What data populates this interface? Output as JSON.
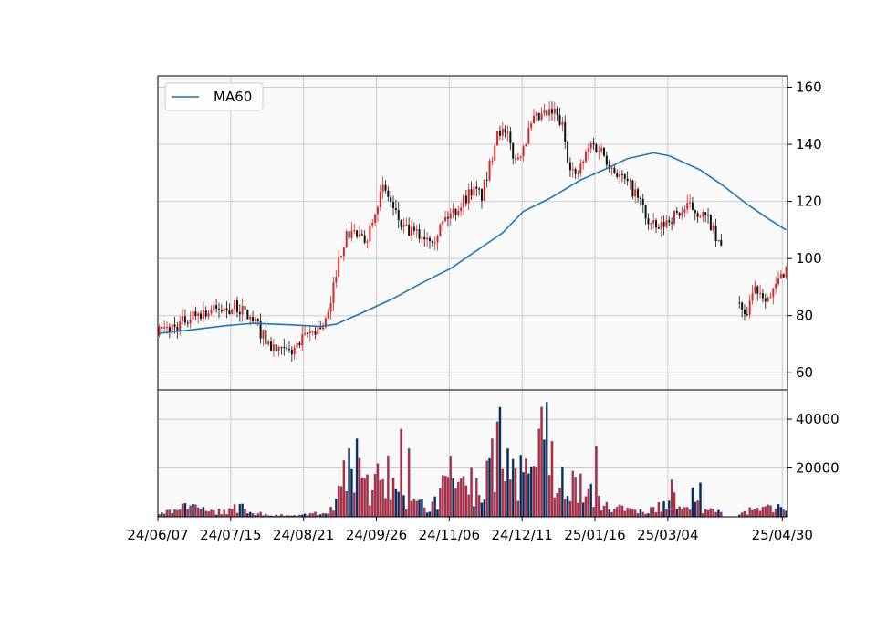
{
  "chart_data": {
    "type": "candlestick",
    "subtype": "candlestick-with-volume",
    "grid": true,
    "legend": {
      "placement": "top-left",
      "entries": [
        {
          "name": "MA60",
          "color": "#1f77b4"
        }
      ]
    },
    "colors": {
      "up": "#d62728",
      "down": "#111111",
      "volume_up": "#c1272d",
      "volume_down": "#0c2a4a",
      "ma_line": "#1f77b4",
      "panel_bg": "#f9f9f9",
      "grid": "#cccccc"
    },
    "price_panel": {
      "ylim": [
        54,
        164
      ],
      "yticks": [
        60,
        80,
        100,
        120,
        140,
        160
      ],
      "ytick_labels": [
        "60",
        "80",
        "100",
        "120",
        "140",
        "160"
      ],
      "ylabel_side": "right",
      "trend_anchors": [
        [
          0,
          74
        ],
        [
          8,
          77
        ],
        [
          14,
          81
        ],
        [
          24,
          82
        ],
        [
          30,
          83
        ],
        [
          34,
          80
        ],
        [
          38,
          76
        ],
        [
          42,
          70
        ],
        [
          46,
          67
        ],
        [
          50,
          67
        ],
        [
          54,
          70
        ],
        [
          58,
          74
        ],
        [
          62,
          76
        ],
        [
          64,
          78
        ],
        [
          66,
          83
        ],
        [
          68,
          96
        ],
        [
          71,
          106
        ],
        [
          74,
          110
        ],
        [
          78,
          106
        ],
        [
          80,
          108
        ],
        [
          83,
          118
        ],
        [
          86,
          124
        ],
        [
          88,
          122
        ],
        [
          90,
          117
        ],
        [
          94,
          110
        ],
        [
          100,
          108
        ],
        [
          106,
          108
        ],
        [
          110,
          114
        ],
        [
          115,
          118
        ],
        [
          120,
          124
        ],
        [
          124,
          122
        ],
        [
          127,
          132
        ],
        [
          130,
          146
        ],
        [
          134,
          142
        ],
        [
          137,
          134
        ],
        [
          140,
          140
        ],
        [
          144,
          148
        ],
        [
          148,
          150
        ],
        [
          152,
          151
        ],
        [
          155,
          146
        ],
        [
          157,
          136
        ],
        [
          160,
          128
        ],
        [
          163,
          134
        ],
        [
          166,
          140
        ],
        [
          170,
          138
        ],
        [
          174,
          132
        ],
        [
          178,
          128
        ],
        [
          182,
          124
        ],
        [
          186,
          118
        ],
        [
          188,
          112
        ],
        [
          192,
          110
        ],
        [
          196,
          114
        ],
        [
          200,
          116
        ],
        [
          204,
          118
        ],
        [
          208,
          116
        ],
        [
          212,
          112
        ],
        [
          214,
          106
        ],
        [
          216,
          104
        ]
      ],
      "trend_gaps": [
        [
          217,
          222
        ]
      ],
      "trend_anchors_after_gap": [
        [
          223,
          85
        ],
        [
          225,
          78
        ],
        [
          227,
          86
        ],
        [
          229,
          90
        ],
        [
          232,
          88
        ],
        [
          235,
          86
        ],
        [
          238,
          92
        ],
        [
          241,
          97
        ]
      ]
    },
    "volume_panel": {
      "ylim": [
        0,
        52000
      ],
      "yticks": [
        20000,
        40000
      ],
      "ytick_labels": [
        "20000",
        "40000"
      ],
      "volume_anchors": [
        [
          0,
          1500
        ],
        [
          5,
          3000
        ],
        [
          10,
          4500
        ],
        [
          20,
          2500
        ],
        [
          28,
          3500
        ],
        [
          32,
          5000
        ],
        [
          36,
          2000
        ],
        [
          45,
          800
        ],
        [
          55,
          800
        ],
        [
          60,
          1500
        ],
        [
          66,
          3000
        ],
        [
          70,
          12000
        ],
        [
          73,
          28000
        ],
        [
          76,
          18000
        ],
        [
          80,
          14000
        ],
        [
          84,
          18000
        ],
        [
          88,
          26000
        ],
        [
          92,
          12000
        ],
        [
          98,
          6000
        ],
        [
          104,
          5000
        ],
        [
          110,
          14000
        ],
        [
          116,
          18000
        ],
        [
          120,
          12000
        ],
        [
          126,
          22000
        ],
        [
          130,
          32000
        ],
        [
          134,
          26000
        ],
        [
          138,
          20000
        ],
        [
          142,
          18000
        ],
        [
          146,
          30000
        ],
        [
          150,
          20000
        ],
        [
          154,
          16000
        ],
        [
          158,
          18000
        ],
        [
          162,
          14000
        ],
        [
          166,
          10000
        ],
        [
          170,
          6000
        ],
        [
          176,
          4000
        ],
        [
          182,
          3000
        ],
        [
          188,
          2500
        ],
        [
          192,
          5000
        ],
        [
          196,
          12000
        ],
        [
          200,
          8000
        ],
        [
          206,
          5000
        ],
        [
          212,
          3500
        ],
        [
          218,
          1500
        ],
        [
          224,
          2500
        ],
        [
          230,
          3500
        ],
        [
          236,
          4500
        ],
        [
          241,
          3000
        ]
      ],
      "volume_spikes": [
        [
          73,
          28000
        ],
        [
          76,
          32000
        ],
        [
          77,
          24000
        ],
        [
          88,
          25000
        ],
        [
          93,
          36000
        ],
        [
          96,
          28000
        ],
        [
          112,
          25000
        ],
        [
          120,
          20000
        ],
        [
          128,
          32000
        ],
        [
          131,
          45000
        ],
        [
          134,
          28000
        ],
        [
          147,
          45000
        ],
        [
          149,
          47000
        ],
        [
          151,
          31000
        ],
        [
          168,
          29000
        ],
        [
          205,
          12000
        ],
        [
          208,
          14000
        ]
      ],
      "volume_gaps": [
        [
          217,
          222
        ]
      ]
    },
    "x": {
      "count": 242,
      "tick_indices": [
        0,
        28,
        56,
        84,
        112,
        140,
        168,
        196,
        240
      ],
      "tick_labels": [
        "24/06/07",
        "24/07/15",
        "24/08/21",
        "24/09/26",
        "24/11/06",
        "24/12/11",
        "25/01/16",
        "25/03/04",
        "25/04/30"
      ]
    },
    "ma60": {
      "name": "MA60",
      "window": 60,
      "anchors": [
        [
          0,
          73.8
        ],
        [
          12,
          75.0
        ],
        [
          26,
          76.5
        ],
        [
          36,
          77.3
        ],
        [
          50,
          76.8
        ],
        [
          62,
          76.2
        ],
        [
          68,
          77.0
        ],
        [
          78,
          81.0
        ],
        [
          90,
          86.0
        ],
        [
          100,
          91.0
        ],
        [
          112,
          96.5
        ],
        [
          124,
          104.0
        ],
        [
          132,
          109.0
        ],
        [
          140,
          116.5
        ],
        [
          150,
          121.0
        ],
        [
          162,
          127.5
        ],
        [
          172,
          131.5
        ],
        [
          180,
          135.0
        ],
        [
          190,
          137.0
        ],
        [
          196,
          136.0
        ],
        [
          208,
          131.0
        ],
        [
          216,
          126.0
        ],
        [
          226,
          119.0
        ],
        [
          234,
          114.0
        ],
        [
          241,
          110.0
        ]
      ]
    }
  }
}
